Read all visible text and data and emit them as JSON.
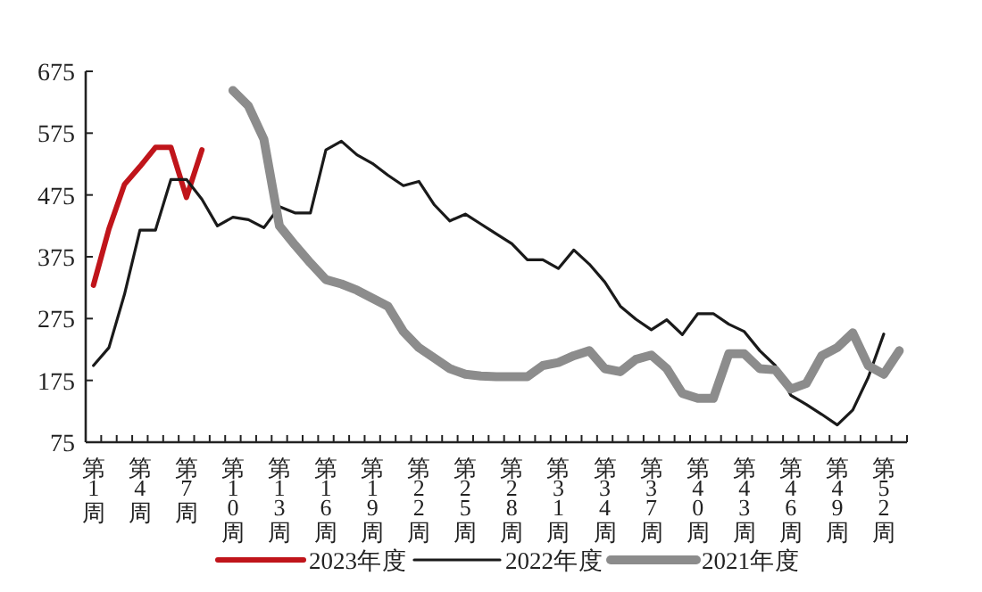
{
  "chart_data": {
    "type": "line",
    "categories": [
      "第1周",
      null,
      null,
      "第4周",
      null,
      null,
      "第7周",
      null,
      null,
      "第10周",
      null,
      null,
      "第13周",
      null,
      null,
      "第16周",
      null,
      null,
      "第19周",
      null,
      null,
      "第22周",
      null,
      null,
      "第25周",
      null,
      null,
      "第28周",
      null,
      null,
      "第31周",
      null,
      null,
      "第34周",
      null,
      null,
      "第37周",
      null,
      null,
      "第40周",
      null,
      null,
      "第43周",
      null,
      null,
      "第46周",
      null,
      null,
      "第49周",
      null,
      null,
      "第52周",
      null
    ],
    "series": [
      {
        "name": "2023年度",
        "color": "#c0151b",
        "values": [
          329,
          420,
          492,
          521,
          552,
          552,
          471,
          548,
          null,
          null,
          null,
          null,
          null,
          null,
          null,
          null,
          null,
          null,
          null,
          null,
          null,
          null,
          null,
          null,
          null,
          null,
          null,
          null,
          null,
          null,
          null,
          null,
          null,
          null,
          null,
          null,
          null,
          null,
          null,
          null,
          null,
          null,
          null,
          null,
          null,
          null,
          null,
          null,
          null,
          null,
          null,
          null,
          null
        ]
      },
      {
        "name": "2022年度",
        "color": "#1a1a1a",
        "values": [
          199,
          228,
          314,
          418,
          418,
          500,
          500,
          468,
          425,
          439,
          435,
          422,
          456,
          446,
          446,
          548,
          562,
          540,
          526,
          507,
          490,
          497,
          459,
          433,
          444,
          428,
          412,
          396,
          370,
          370,
          356,
          386,
          363,
          334,
          295,
          274,
          257,
          273,
          249,
          283,
          283,
          266,
          254,
          223,
          199,
          151,
          136,
          120,
          103,
          127,
          180,
          250,
          null
        ]
      },
      {
        "name": "2021年度",
        "color": "#8c8c8c",
        "values": [
          null,
          null,
          null,
          null,
          null,
          null,
          null,
          null,
          null,
          644,
          619,
          565,
          425,
          394,
          365,
          338,
          331,
          321,
          308,
          295,
          254,
          228,
          211,
          194,
          185,
          182,
          181,
          181,
          181,
          199,
          204,
          215,
          223,
          194,
          189,
          209,
          216,
          194,
          154,
          146,
          146,
          218,
          218,
          194,
          192,
          161,
          170,
          215,
          228,
          252,
          199,
          185,
          223
        ]
      }
    ],
    "ylim": [
      75,
      675
    ],
    "yticks": [
      75,
      175,
      275,
      375,
      475,
      575,
      675
    ],
    "legend": "bottom"
  }
}
